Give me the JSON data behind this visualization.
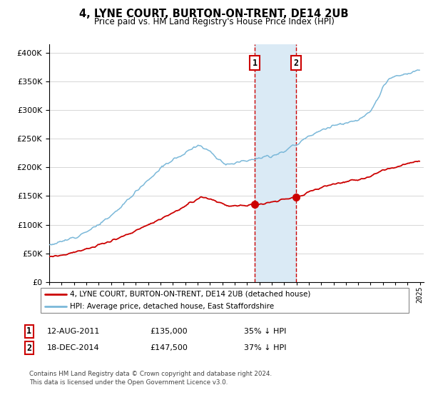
{
  "title": "4, LYNE COURT, BURTON-ON-TRENT, DE14 2UB",
  "subtitle": "Price paid vs. HM Land Registry's House Price Index (HPI)",
  "legend_line1": "4, LYNE COURT, BURTON-ON-TRENT, DE14 2UB (detached house)",
  "legend_line2": "HPI: Average price, detached house, East Staffordshire",
  "sale1_label": "1",
  "sale1_date": "12-AUG-2011",
  "sale1_price": "£135,000",
  "sale1_hpi": "35% ↓ HPI",
  "sale2_label": "2",
  "sale2_date": "18-DEC-2014",
  "sale2_price": "£147,500",
  "sale2_hpi": "37% ↓ HPI",
  "footnote1": "Contains HM Land Registry data © Crown copyright and database right 2024.",
  "footnote2": "This data is licensed under the Open Government Licence v3.0.",
  "hpi_color": "#7ab8d9",
  "price_color": "#cc0000",
  "shade_color": "#daeaf5",
  "vline_color": "#cc0000",
  "yticks": [
    0,
    50000,
    100000,
    150000,
    200000,
    250000,
    300000,
    350000,
    400000
  ],
  "ylim_min": 0,
  "ylim_max": 415000,
  "xlim_min": 1995,
  "xlim_max": 2025.3,
  "sale1_x": 2011.625,
  "sale2_x": 2014.958,
  "sale1_y": 135000,
  "sale2_y": 147500
}
